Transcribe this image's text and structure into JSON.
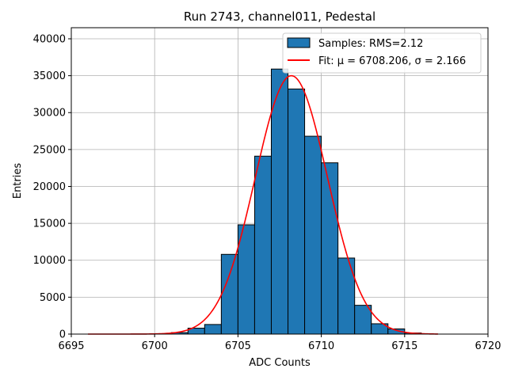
{
  "chart_data": {
    "type": "bar",
    "title": "Run 2743, channel011, Pedestal",
    "xlabel": "ADC Counts",
    "ylabel": "Entries",
    "xlim": [
      6695,
      6720
    ],
    "ylim": [
      0,
      41500
    ],
    "xticks": [
      6695,
      6700,
      6705,
      6710,
      6715,
      6720
    ],
    "yticks": [
      0,
      5000,
      10000,
      15000,
      20000,
      25000,
      30000,
      35000,
      40000
    ],
    "grid": true,
    "legend_position": "top-right",
    "series": [
      {
        "name": "Samples: RMS=2.12",
        "type": "histogram",
        "color": "#1f77b4",
        "bin_width": 1,
        "bins": [
          {
            "x0": 6700,
            "value": 50
          },
          {
            "x0": 6701,
            "value": 200
          },
          {
            "x0": 6702,
            "value": 800
          },
          {
            "x0": 6703,
            "value": 1300
          },
          {
            "x0": 6704,
            "value": 10800
          },
          {
            "x0": 6705,
            "value": 14800
          },
          {
            "x0": 6706,
            "value": 24100
          },
          {
            "x0": 6707,
            "value": 35900
          },
          {
            "x0": 6708,
            "value": 33200
          },
          {
            "x0": 6709,
            "value": 26800
          },
          {
            "x0": 6710,
            "value": 23200
          },
          {
            "x0": 6711,
            "value": 10300
          },
          {
            "x0": 6712,
            "value": 3900
          },
          {
            "x0": 6713,
            "value": 1400
          },
          {
            "x0": 6714,
            "value": 700
          },
          {
            "x0": 6715,
            "value": 150
          }
        ]
      },
      {
        "name": "Fit: μ = 6708.206, σ = 2.166",
        "type": "line",
        "color": "#ff0000",
        "mu": 6708.206,
        "sigma": 2.166,
        "amplitude": 35000,
        "x_range": [
          6696,
          6717
        ]
      }
    ]
  }
}
